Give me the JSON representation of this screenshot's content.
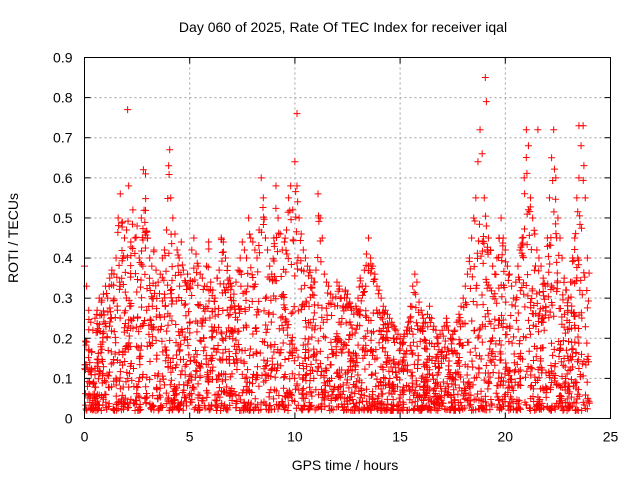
{
  "chart_data": {
    "type": "scatter",
    "title": "Day 060 of 2025, Rate Of TEC Index for receiver iqal",
    "xlabel": "GPS time / hours",
    "ylabel": "ROTI / TECUs",
    "xlim": [
      0,
      25
    ],
    "ylim": [
      0,
      0.9
    ],
    "x_ticks": [
      "0",
      "5",
      "10",
      "15",
      "20",
      "25"
    ],
    "y_ticks": [
      "0",
      "0.1",
      "0.2",
      "0.3",
      "0.4",
      "0.5",
      "0.6",
      "0.7",
      "0.8",
      "0.9"
    ],
    "grid": true,
    "marker": "+",
    "color": "#ff0000",
    "series": [
      {
        "x": [
          0.0,
          0.1,
          0.2,
          0.3,
          0.4,
          0.5,
          0.6,
          0.7,
          0.8,
          0.9,
          1.0,
          1.1,
          1.2,
          1.3,
          1.4,
          1.5,
          1.6,
          1.7,
          1.8,
          1.9,
          2.0,
          2.1,
          2.2,
          2.3,
          2.4,
          2.5,
          2.6,
          2.7,
          2.8,
          2.9,
          3.0,
          3.1,
          3.2,
          3.3,
          3.4,
          3.5,
          3.6,
          3.7,
          3.8,
          3.9,
          4.0,
          4.1,
          4.2,
          4.3,
          4.4,
          4.5,
          4.6,
          4.7,
          4.8,
          4.9,
          5.0,
          5.1,
          5.2,
          5.3,
          5.4,
          5.5,
          5.6,
          5.7,
          5.8,
          5.9,
          6.0,
          6.1,
          6.2,
          6.3,
          6.4,
          6.5,
          6.6,
          6.7,
          6.8,
          6.9,
          7.0,
          7.1,
          7.2,
          7.3,
          7.4,
          7.5,
          7.6,
          7.7,
          7.8,
          7.9,
          8.0,
          8.1,
          8.2,
          8.3,
          8.4,
          8.5,
          8.6,
          8.7,
          8.8,
          8.9,
          9.0,
          9.1,
          9.2,
          9.3,
          9.4,
          9.5,
          9.6,
          9.7,
          9.8,
          9.9,
          10.0,
          10.1,
          10.2,
          10.3,
          10.4,
          10.5,
          10.6,
          10.7,
          10.8,
          10.9,
          11.0,
          11.1,
          11.2,
          11.3,
          11.4,
          11.5,
          11.6,
          11.7,
          11.8,
          11.9,
          12.0,
          12.1,
          12.2,
          12.3,
          12.4,
          12.5,
          12.6,
          12.7,
          12.8,
          12.9,
          13.0,
          13.1,
          13.2,
          13.3,
          13.4,
          13.5,
          13.6,
          13.7,
          13.8,
          13.9,
          14.0,
          14.1,
          14.2,
          14.3,
          14.4,
          14.5,
          14.6,
          14.7,
          14.8,
          14.9,
          15.0,
          15.1,
          15.2,
          15.3,
          15.4,
          15.5,
          15.6,
          15.7,
          15.8,
          15.9,
          16.0,
          16.1,
          16.2,
          16.3,
          16.4,
          16.5,
          16.6,
          16.7,
          16.8,
          16.9,
          17.0,
          17.1,
          17.2,
          17.3,
          17.4,
          17.5,
          17.6,
          17.7,
          17.8,
          17.9,
          18.0,
          18.1,
          18.2,
          18.3,
          18.4,
          18.5,
          18.6,
          18.7,
          18.8,
          18.9,
          19.0,
          19.1,
          19.2,
          19.3,
          19.4,
          19.5,
          19.6,
          19.7,
          19.8,
          19.9,
          20.0,
          20.1,
          20.2,
          20.3,
          20.4,
          20.5,
          20.6,
          20.7,
          20.8,
          20.9,
          21.0,
          21.1,
          21.2,
          21.3,
          21.4,
          21.5,
          21.6,
          21.7,
          21.8,
          21.9,
          22.0,
          22.1,
          22.2,
          22.3,
          22.4,
          22.5,
          22.6,
          22.7,
          22.8,
          22.9,
          23.0,
          23.1,
          23.2,
          23.3,
          23.4,
          23.5,
          23.6,
          23.7,
          23.8,
          23.9,
          2.05,
          4.05,
          10.1,
          19.05,
          19.1,
          21.55,
          23.5
        ],
        "y": [
          0.38,
          0.33,
          0.27,
          0.24,
          0.22,
          0.25,
          0.27,
          0.3,
          0.29,
          0.31,
          0.33,
          0.3,
          0.35,
          0.37,
          0.36,
          0.4,
          0.5,
          0.56,
          0.49,
          0.45,
          0.47,
          0.58,
          0.44,
          0.52,
          0.45,
          0.48,
          0.4,
          0.5,
          0.62,
          0.61,
          0.45,
          0.4,
          0.38,
          0.42,
          0.37,
          0.34,
          0.36,
          0.4,
          0.42,
          0.47,
          0.63,
          0.55,
          0.5,
          0.46,
          0.42,
          0.4,
          0.44,
          0.37,
          0.34,
          0.36,
          0.33,
          0.42,
          0.45,
          0.41,
          0.38,
          0.36,
          0.35,
          0.33,
          0.38,
          0.44,
          0.34,
          0.32,
          0.3,
          0.35,
          0.37,
          0.45,
          0.44,
          0.4,
          0.38,
          0.35,
          0.33,
          0.31,
          0.34,
          0.37,
          0.4,
          0.44,
          0.42,
          0.4,
          0.5,
          0.45,
          0.44,
          0.42,
          0.4,
          0.47,
          0.6,
          0.55,
          0.45,
          0.42,
          0.38,
          0.36,
          0.45,
          0.58,
          0.5,
          0.46,
          0.42,
          0.44,
          0.47,
          0.55,
          0.58,
          0.52,
          0.64,
          0.58,
          0.5,
          0.46,
          0.42,
          0.4,
          0.38,
          0.37,
          0.35,
          0.34,
          0.37,
          0.56,
          0.5,
          0.45,
          0.36,
          0.34,
          0.33,
          0.31,
          0.3,
          0.28,
          0.34,
          0.33,
          0.3,
          0.28,
          0.32,
          0.31,
          0.29,
          0.27,
          0.26,
          0.28,
          0.3,
          0.35,
          0.33,
          0.37,
          0.41,
          0.45,
          0.4,
          0.38,
          0.36,
          0.33,
          0.32,
          0.3,
          0.28,
          0.27,
          0.26,
          0.25,
          0.24,
          0.23,
          0.22,
          0.21,
          0.2,
          0.19,
          0.21,
          0.22,
          0.24,
          0.28,
          0.33,
          0.36,
          0.34,
          0.29,
          0.27,
          0.25,
          0.24,
          0.26,
          0.28,
          0.25,
          0.23,
          0.22,
          0.2,
          0.21,
          0.22,
          0.23,
          0.25,
          0.22,
          0.2,
          0.21,
          0.22,
          0.24,
          0.26,
          0.28,
          0.3,
          0.33,
          0.36,
          0.4,
          0.45,
          0.5,
          0.55,
          0.64,
          0.72,
          0.66,
          0.55,
          0.48,
          0.45,
          0.42,
          0.38,
          0.36,
          0.4,
          0.45,
          0.5,
          0.45,
          0.42,
          0.38,
          0.36,
          0.33,
          0.3,
          0.34,
          0.38,
          0.42,
          0.45,
          0.6,
          0.72,
          0.68,
          0.55,
          0.5,
          0.46,
          0.42,
          0.4,
          0.38,
          0.35,
          0.33,
          0.45,
          0.55,
          0.65,
          0.72,
          0.6,
          0.5,
          0.45,
          0.4,
          0.35,
          0.32,
          0.3,
          0.34,
          0.4,
          0.45,
          0.55,
          0.6,
          0.68,
          0.73,
          0.55,
          0.4,
          0.77,
          0.67,
          0.76,
          0.85,
          0.79,
          0.72,
          0.73
        ]
      }
    ]
  }
}
